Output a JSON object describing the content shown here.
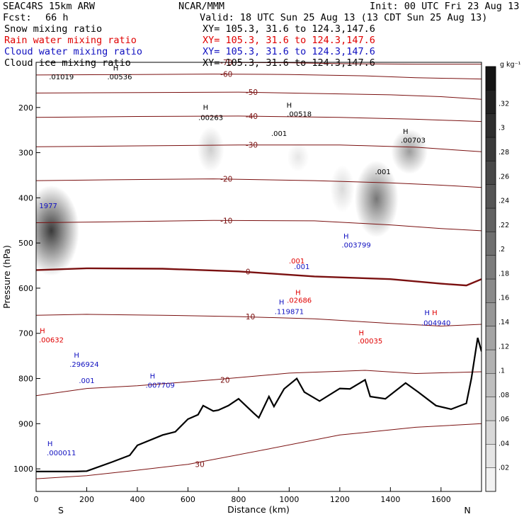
{
  "header": {
    "model": "SEAC4RS 15km ARW",
    "center": "NCAR/MMM",
    "init": "Init: 00 UTC Fri 23 Aug 13",
    "fcst_label": "Fcst:",
    "fcst_value": "66 h",
    "valid": "Valid: 18 UTC Sun 25 Aug 13 (13 CDT Sun 25 Aug 13)",
    "fields": [
      {
        "name": "Snow mixing ratio",
        "xy": "XY= 105.3, 31.6 to 124.3,147.6",
        "color": "#000000"
      },
      {
        "name": "Rain water mixing ratio",
        "xy": "XY= 105.3, 31.6 to 124.3,147.6",
        "color": "#e00000"
      },
      {
        "name": "Cloud water mixing ratio",
        "xy": "XY= 105.3, 31.6 to 124.3,147.6",
        "color": "#1010c0"
      },
      {
        "name": "Cloud ice mixing ratio",
        "xy": "XY= 105.3, 31.6 to 124.3,147.6",
        "color": "#000000"
      }
    ]
  },
  "chart_data": {
    "type": "cross-section",
    "xlabel": "Distance (km)",
    "ylabel": "Pressure (hPa)",
    "xlim": [
      0,
      1760
    ],
    "ylim": [
      1050,
      100
    ],
    "x_ticks": [
      0,
      200,
      400,
      600,
      800,
      1000,
      1200,
      1400,
      1600
    ],
    "y_ticks": [
      200,
      300,
      400,
      500,
      600,
      700,
      800,
      900,
      1000
    ],
    "x_end_labels": {
      "left": "S",
      "right": "N"
    },
    "colorbar": {
      "unit": "g kg⁻¹",
      "ticks": [
        0.02,
        0.04,
        0.06,
        0.08,
        0.1,
        0.12,
        0.14,
        0.16,
        0.18,
        0.2,
        0.22,
        0.24,
        0.26,
        0.28,
        0.3,
        0.32
      ],
      "tick_labels": [
        ".02",
        ".04",
        ".06",
        ".08",
        ".1",
        ".12",
        ".14",
        ".16",
        ".18",
        ".2",
        ".22",
        ".24",
        ".26",
        ".28",
        ".3",
        ".32"
      ],
      "max": 0.35
    },
    "isotherms": [
      {
        "label": "-70",
        "points": [
          [
            0,
            100
          ],
          [
            400,
            100
          ],
          [
            700,
            100
          ],
          [
            1000,
            101
          ],
          [
            1200,
            103
          ],
          [
            1500,
            104
          ],
          [
            1760,
            104
          ]
        ]
      },
      {
        "label": "-60",
        "points": [
          [
            0,
            128
          ],
          [
            400,
            127
          ],
          [
            700,
            126
          ],
          [
            1000,
            127
          ],
          [
            1300,
            130
          ],
          [
            1500,
            134
          ],
          [
            1760,
            137
          ]
        ]
      },
      {
        "label": "-50",
        "points": [
          [
            0,
            168
          ],
          [
            400,
            167
          ],
          [
            800,
            166
          ],
          [
            1100,
            169
          ],
          [
            1400,
            172
          ],
          [
            1600,
            176
          ],
          [
            1760,
            182
          ]
        ]
      },
      {
        "label": "-40",
        "points": [
          [
            0,
            222
          ],
          [
            400,
            220
          ],
          [
            800,
            219
          ],
          [
            1200,
            222
          ],
          [
            1500,
            226
          ],
          [
            1760,
            231
          ]
        ]
      },
      {
        "label": "-30",
        "points": [
          [
            0,
            287
          ],
          [
            400,
            285
          ],
          [
            800,
            283
          ],
          [
            1200,
            283
          ],
          [
            1500,
            288
          ],
          [
            1760,
            298
          ]
        ]
      },
      {
        "label": "-20",
        "points": [
          [
            0,
            362
          ],
          [
            300,
            360
          ],
          [
            700,
            358
          ],
          [
            1100,
            362
          ],
          [
            1400,
            367
          ],
          [
            1600,
            372
          ],
          [
            1760,
            377
          ]
        ]
      },
      {
        "label": "-10",
        "points": [
          [
            0,
            455
          ],
          [
            300,
            453
          ],
          [
            700,
            450
          ],
          [
            1100,
            451
          ],
          [
            1400,
            460
          ],
          [
            1600,
            468
          ],
          [
            1760,
            473
          ]
        ]
      },
      {
        "label": "0",
        "points": [
          [
            0,
            560
          ],
          [
            200,
            556
          ],
          [
            500,
            557
          ],
          [
            800,
            563
          ],
          [
            1100,
            574
          ],
          [
            1400,
            580
          ],
          [
            1600,
            590
          ],
          [
            1700,
            594
          ],
          [
            1760,
            580
          ]
        ],
        "bold": true
      },
      {
        "label": "10",
        "points": [
          [
            0,
            660
          ],
          [
            200,
            658
          ],
          [
            500,
            660
          ],
          [
            800,
            663
          ],
          [
            1100,
            668
          ],
          [
            1400,
            678
          ],
          [
            1600,
            684
          ],
          [
            1760,
            680
          ]
        ]
      },
      {
        "label": "20",
        "points": [
          [
            0,
            838
          ],
          [
            200,
            822
          ],
          [
            400,
            816
          ],
          [
            700,
            803
          ],
          [
            1000,
            788
          ],
          [
            1300,
            782
          ],
          [
            1500,
            789
          ],
          [
            1760,
            785
          ]
        ]
      },
      {
        "label": "30",
        "points": [
          [
            0,
            1022
          ],
          [
            200,
            1015
          ],
          [
            400,
            1003
          ],
          [
            600,
            990
          ],
          [
            900,
            958
          ],
          [
            1200,
            925
          ],
          [
            1500,
            908
          ],
          [
            1760,
            900
          ]
        ]
      }
    ],
    "terrain": [
      [
        0,
        1006
      ],
      [
        150,
        1006
      ],
      [
        200,
        1005
      ],
      [
        300,
        985
      ],
      [
        370,
        970
      ],
      [
        400,
        948
      ],
      [
        500,
        925
      ],
      [
        550,
        918
      ],
      [
        600,
        890
      ],
      [
        640,
        880
      ],
      [
        660,
        860
      ],
      [
        700,
        872
      ],
      [
        720,
        870
      ],
      [
        760,
        860
      ],
      [
        800,
        845
      ],
      [
        860,
        877
      ],
      [
        880,
        887
      ],
      [
        920,
        840
      ],
      [
        940,
        862
      ],
      [
        980,
        823
      ],
      [
        1030,
        800
      ],
      [
        1060,
        830
      ],
      [
        1120,
        850
      ],
      [
        1200,
        822
      ],
      [
        1240,
        823
      ],
      [
        1300,
        803
      ],
      [
        1320,
        840
      ],
      [
        1380,
        845
      ],
      [
        1460,
        810
      ],
      [
        1510,
        830
      ],
      [
        1580,
        860
      ],
      [
        1640,
        868
      ],
      [
        1700,
        855
      ],
      [
        1720,
        800
      ],
      [
        1745,
        710
      ],
      [
        1760,
        740
      ]
    ],
    "shading": [
      {
        "x": 60,
        "p_top": 385,
        "p_bottom": 560,
        "max": 0.32
      },
      {
        "x": 690,
        "p_top": 255,
        "p_bottom": 330,
        "max": 0.08
      },
      {
        "x": 1035,
        "p_top": 290,
        "p_bottom": 330,
        "max": 0.04
      },
      {
        "x": 1210,
        "p_top": 340,
        "p_bottom": 420,
        "max": 0.06
      },
      {
        "x": 1345,
        "p_top": 330,
        "p_bottom": 475,
        "max": 0.22
      },
      {
        "x": 1475,
        "p_top": 260,
        "p_bottom": 335,
        "max": 0.16
      }
    ],
    "labels": [
      {
        "text": ".01019",
        "x": 100,
        "p": 138,
        "color": "#000000"
      },
      {
        "text": "H",
        "x": 315,
        "p": 118,
        "color": "#000000"
      },
      {
        "text": ".00536",
        "x": 330,
        "p": 138,
        "color": "#000000"
      },
      {
        "text": "H",
        "x": 670,
        "p": 205,
        "color": "#000000"
      },
      {
        "text": ".00263",
        "x": 690,
        "p": 228,
        "color": "#000000"
      },
      {
        "text": "H",
        "x": 1000,
        "p": 200,
        "color": "#000000"
      },
      {
        "text": ".00518",
        "x": 1040,
        "p": 220,
        "color": "#000000"
      },
      {
        "text": ".001",
        "x": 960,
        "p": 263,
        "color": "#000000"
      },
      {
        "text": "H",
        "x": 1460,
        "p": 258,
        "color": "#000000"
      },
      {
        "text": ".00703",
        "x": 1490,
        "p": 278,
        "color": "#000000"
      },
      {
        "text": ".001",
        "x": 1370,
        "p": 348,
        "color": "#000000"
      },
      {
        "text": "1977",
        "x": 48,
        "p": 423,
        "color": "#1010c0"
      },
      {
        "text": "H",
        "x": 1225,
        "p": 490,
        "color": "#1010c0"
      },
      {
        "text": ".003799",
        "x": 1265,
        "p": 510,
        "color": "#1010c0"
      },
      {
        "text": ".001",
        "x": 1030,
        "p": 545,
        "color": "#e00000"
      },
      {
        "text": ".001",
        "x": 1050,
        "p": 558,
        "color": "#1010c0"
      },
      {
        "text": "H",
        "x": 1035,
        "p": 615,
        "color": "#e00000"
      },
      {
        "text": ".02686",
        "x": 1040,
        "p": 632,
        "color": "#e00000"
      },
      {
        "text": "H",
        "x": 970,
        "p": 636,
        "color": "#1010c0"
      },
      {
        "text": ".119871",
        "x": 1000,
        "p": 657,
        "color": "#1010c0"
      },
      {
        "text": "H",
        "x": 1545,
        "p": 660,
        "color": "#1010c0"
      },
      {
        "text": "H",
        "x": 1575,
        "p": 660,
        "color": "#e00000"
      },
      {
        "text": ".004940",
        "x": 1580,
        "p": 682,
        "color": "#1010c0"
      },
      {
        "text": "H",
        "x": 25,
        "p": 700,
        "color": "#e00000"
      },
      {
        "text": ".00632",
        "x": 60,
        "p": 720,
        "color": "#e00000"
      },
      {
        "text": "H",
        "x": 1285,
        "p": 704,
        "color": "#e00000"
      },
      {
        "text": ".00035",
        "x": 1320,
        "p": 722,
        "color": "#e00000"
      },
      {
        "text": "H",
        "x": 160,
        "p": 754,
        "color": "#1010c0"
      },
      {
        "text": ".296924",
        "x": 190,
        "p": 774,
        "color": "#1010c0"
      },
      {
        "text": ".001",
        "x": 200,
        "p": 810,
        "color": "#1010c0"
      },
      {
        "text": "H",
        "x": 460,
        "p": 800,
        "color": "#1010c0"
      },
      {
        "text": ".007709",
        "x": 490,
        "p": 820,
        "color": "#1010c0"
      },
      {
        "text": "H",
        "x": 55,
        "p": 950,
        "color": "#1010c0"
      },
      {
        "text": ".000011",
        "x": 100,
        "p": 970,
        "color": "#1010c0"
      }
    ]
  }
}
